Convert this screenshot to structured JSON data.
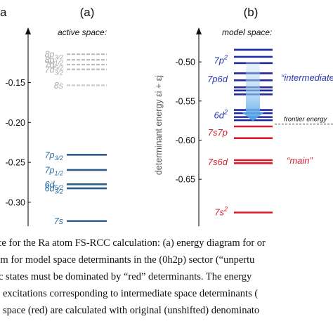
{
  "chart_data": [
    {
      "type": "line",
      "panel_label": "(a)",
      "side_label": "a",
      "subtitle": "active space:",
      "ylim": [
        -0.33,
        -0.08
      ],
      "ticks": [
        {
          "value": -0.15,
          "label": "-0.15"
        },
        {
          "value": -0.2,
          "label": "-0.20"
        },
        {
          "value": -0.25,
          "label": "-0.25"
        },
        {
          "value": -0.3,
          "label": "-0.30"
        }
      ],
      "levels": [
        {
          "name": "8p3/2",
          "base": "8p",
          "sub": "3/2",
          "value": -0.1145,
          "style": "dashed",
          "color": "#bbbbbb",
          "label_color": "#aaaaaa"
        },
        {
          "name": "8p1/2",
          "base": "8p",
          "sub": "1/2",
          "value": -0.1215,
          "style": "dashed",
          "color": "#bbbbbb",
          "label_color": "#aaaaaa"
        },
        {
          "name": "7d5/2",
          "base": "7d",
          "sub": "5/2",
          "value": -0.1275,
          "style": "dashed",
          "color": "#bbbbbb",
          "label_color": "#aaaaaa"
        },
        {
          "name": "7d3/2",
          "base": "7d",
          "sub": "3/2",
          "value": -0.1335,
          "style": "dashed",
          "color": "#bbbbbb",
          "label_color": "#aaaaaa"
        },
        {
          "name": "8s",
          "base": "8s",
          "sub": "",
          "value": -0.1535,
          "style": "dashed",
          "color": "#cccccc",
          "label_color": "#aaaaaa"
        },
        {
          "name": "7p3/2",
          "base": "7p",
          "sub": "3/2",
          "value": -0.2405,
          "style": "solid",
          "color": "#2c5f8d",
          "label_color": "#2c6fa4"
        },
        {
          "name": "7p1/2",
          "base": "7p",
          "sub": "1/2",
          "value": -0.2595,
          "style": "solid",
          "color": "#2c5f8d",
          "label_color": "#2c6fa4"
        },
        {
          "name": "6d5/2",
          "base": "6d",
          "sub": "5/2",
          "value": -0.2775,
          "style": "solid",
          "color": "#2c5f8d",
          "label_color": "#2c6fa4"
        },
        {
          "name": "6d3/2",
          "base": "6d",
          "sub": "3/2",
          "value": -0.2825,
          "style": "solid",
          "color": "#2c5f8d",
          "label_color": "#2c6fa4"
        },
        {
          "name": "7s",
          "base": "7s",
          "sub": "",
          "value": -0.3235,
          "style": "solid",
          "color": "#2c5f8d",
          "label_color": "#2c6fa4"
        }
      ]
    },
    {
      "type": "line",
      "panel_label": "(b)",
      "subtitle": "model space:",
      "ylabel": "determinant energy εi + εj",
      "ylim": [
        -0.71,
        -0.455
      ],
      "ticks": [
        {
          "value": -0.5,
          "label": "-0.50"
        },
        {
          "value": -0.55,
          "label": "-0.55"
        },
        {
          "value": -0.6,
          "label": "-0.60"
        },
        {
          "value": -0.65,
          "label": "-0.65"
        }
      ],
      "levels": [
        {
          "group": "7p2",
          "value": -0.4845,
          "color": "#1f2aa0"
        },
        {
          "group": "7p2",
          "value": -0.4935,
          "color": "#1f2aa0"
        },
        {
          "group": "7p2",
          "value": -0.5015,
          "color": "#1f2aa0"
        },
        {
          "group": "7p6d",
          "value": -0.5145,
          "color": "#1f2aa0"
        },
        {
          "group": "7p6d",
          "value": -0.5235,
          "color": "#1f2aa0"
        },
        {
          "group": "7p6d",
          "value": -0.5325,
          "color": "#1f2aa0"
        },
        {
          "group": "7p6d",
          "value": -0.5365,
          "color": "#1f2aa0"
        },
        {
          "group": "7p6d",
          "value": -0.5415,
          "color": "#1f2aa0"
        },
        {
          "group": "6d2",
          "value": -0.5615,
          "color": "#1f2aa0"
        },
        {
          "group": "6d2",
          "value": -0.5655,
          "color": "#1f2aa0"
        },
        {
          "group": "6d2",
          "value": -0.5705,
          "color": "#1f2aa0"
        },
        {
          "group": "6d2",
          "value": -0.5745,
          "color": "#1f2aa0"
        },
        {
          "group": "7s7p",
          "value": -0.5825,
          "color": "#e01a2a"
        },
        {
          "group": "7s7p",
          "value": -0.5975,
          "color": "#e01a2a"
        },
        {
          "group": "7s6d",
          "value": -0.6255,
          "color": "#e01a2a"
        },
        {
          "group": "7s6d",
          "value": -0.6295,
          "color": "#e01a2a"
        },
        {
          "group": "7s2",
          "value": -0.6925,
          "color": "#e01a2a"
        }
      ],
      "group_labels": [
        {
          "id": "7p2",
          "base": "7p",
          "sup": "2",
          "value": -0.4975,
          "color": "#2a36b0"
        },
        {
          "id": "7p6d",
          "base": "7p6d",
          "sup": "",
          "value": -0.5215,
          "color": "#2a36b0"
        },
        {
          "id": "6d2",
          "base": "6d",
          "sup": "2",
          "value": -0.5675,
          "color": "#2a36b0"
        },
        {
          "id": "7s7p",
          "base": "7s7p",
          "sup": "",
          "value": -0.5895,
          "color": "#d42030"
        },
        {
          "id": "7s6d",
          "base": "7s6d",
          "sup": "",
          "value": -0.6275,
          "color": "#d42030"
        },
        {
          "id": "7s2",
          "base": "7s",
          "sup": "2",
          "value": -0.6915,
          "color": "#d42030"
        }
      ],
      "annotations": {
        "intermediate": {
          "text": "“intermediate",
          "value": -0.5195,
          "color": "#2a36b0"
        },
        "main": {
          "text": "“main”",
          "value": -0.6255,
          "color": "#d42030"
        },
        "frontier": {
          "text": "frontier energy",
          "value": -0.5795,
          "color": "#111111"
        }
      },
      "arrow": {
        "from": -0.5005,
        "to": -0.5755,
        "color": "#5aa9e6"
      }
    }
  ],
  "caption": {
    "lines": [
      "ce for the Ra atom FS-RCC calculation: (a) energy diagram for or",
      "am for model space determinants in the (0h2p) sector (“unpertu",
      "c states must be dominated by “red” determinants. The energy",
      "excitations corresponding to intermediate space determinants (",
      "space (red) are calculated with original (unshifted) denominato"
    ]
  }
}
